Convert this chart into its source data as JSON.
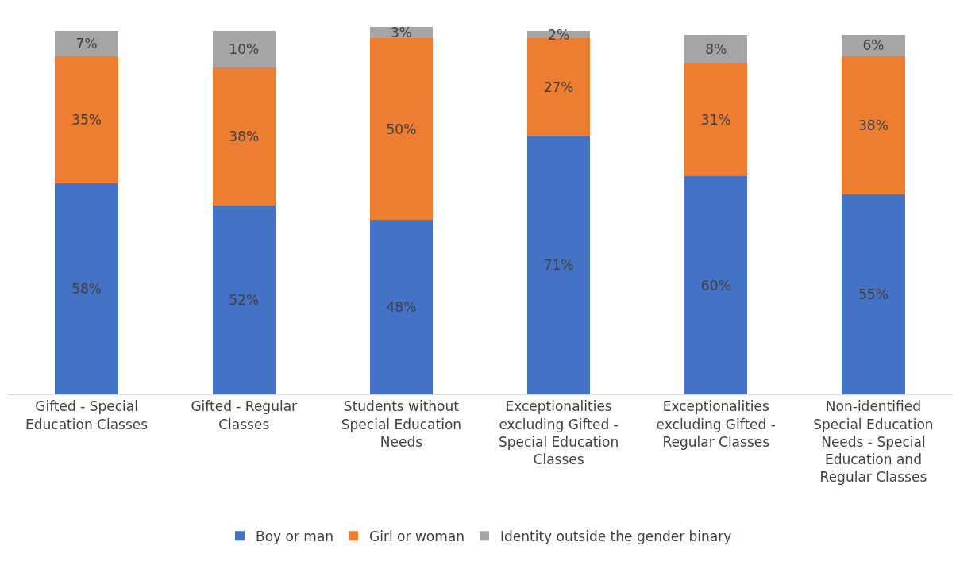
{
  "chart_data": {
    "type": "bar",
    "stacked": true,
    "tick_labels": "x",
    "grid": false,
    "legend": "bottom",
    "categories": [
      "Gifted - Special Education Classes",
      "Gifted - Regular Classes",
      "Students without Special Education Needs",
      "Exceptionalities excluding Gifted - Special Education Classes",
      "Exceptionalities excluding Gifted - Regular Classes",
      "Non-identified Special Education Needs - Special Education and Regular Classes"
    ],
    "series": [
      {
        "name": "Boy or man",
        "color": "#4472c4",
        "values": [
          58,
          52,
          48,
          71,
          60,
          55
        ],
        "value_labels": [
          "58%",
          "52%",
          "48%",
          "71%",
          "60%",
          "55%"
        ]
      },
      {
        "name": "Girl or woman",
        "color": "#ed7d31",
        "values": [
          35,
          38,
          50,
          27,
          31,
          38
        ],
        "value_labels": [
          "35%",
          "38%",
          "50%",
          "27%",
          "31%",
          "38%"
        ]
      },
      {
        "name": "Identity outside the gender binary",
        "color": "#a5a5a5",
        "values": [
          7,
          10,
          3,
          2,
          8,
          6
        ],
        "value_labels": [
          "7%",
          "10%",
          "3%",
          "2%",
          "8%",
          "6%"
        ]
      }
    ]
  }
}
